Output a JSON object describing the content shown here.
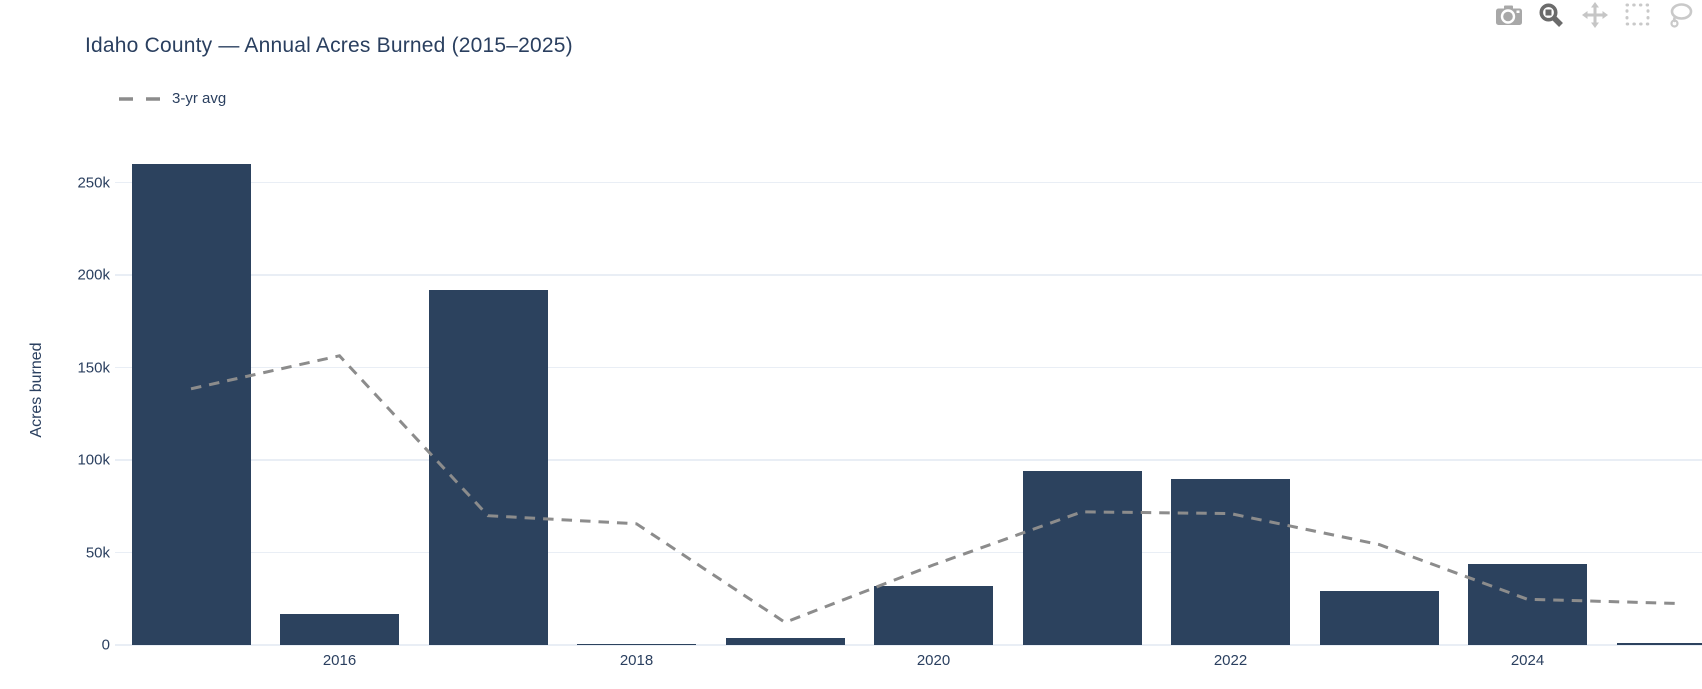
{
  "toolbar": {
    "icons": [
      {
        "name": "camera",
        "label": "Download plot as png"
      },
      {
        "name": "zoom",
        "label": "Zoom",
        "active": true
      },
      {
        "name": "pan",
        "label": "Pan"
      },
      {
        "name": "box-select",
        "label": "Box Select"
      },
      {
        "name": "lasso-select",
        "label": "Lasso Select"
      }
    ]
  },
  "chart_data": {
    "type": "bar",
    "title": "Idaho County — Annual Acres Burned (2015–2025)",
    "xlabel": "",
    "ylabel": "Acres burned",
    "categories": [
      2015,
      2016,
      2017,
      2018,
      2019,
      2020,
      2021,
      2022,
      2023,
      2024,
      2025
    ],
    "series": [
      {
        "name": "Acres burned",
        "type": "bar",
        "color": "#2c425e",
        "values": [
          260000,
          17000,
          192000,
          600,
          4000,
          32000,
          94000,
          90000,
          29000,
          44000,
          1000
        ]
      },
      {
        "name": "3-yr avg",
        "type": "line",
        "style": "dashed",
        "color": "#8c8c8c",
        "values": [
          138500,
          156300,
          69900,
          65500,
          12200,
          43300,
          72000,
          71000,
          54300,
          24700,
          22500
        ]
      }
    ],
    "ylim": [
      0,
      272000
    ],
    "yticks": [
      {
        "label": "0",
        "value": 0
      },
      {
        "label": "50k",
        "value": 50000
      },
      {
        "label": "100k",
        "value": 100000
      },
      {
        "label": "150k",
        "value": 150000
      },
      {
        "label": "200k",
        "value": 200000
      },
      {
        "label": "250k",
        "value": 250000
      }
    ],
    "xticks": [
      {
        "label": "2016",
        "value": 2016
      },
      {
        "label": "2018",
        "value": 2018
      },
      {
        "label": "2020",
        "value": 2020
      },
      {
        "label": "2022",
        "value": 2022
      },
      {
        "label": "2024",
        "value": 2024
      }
    ],
    "grid": true,
    "legend_position": "top-left",
    "legend": [
      {
        "label": "3-yr avg",
        "color": "#8c8c8c",
        "style": "dashed"
      }
    ]
  },
  "colors": {
    "bar": "#2c425e",
    "avg_line": "#8c8c8c",
    "text": "#2a3f5f",
    "grid": "#e9eef5",
    "background": "#ffffff",
    "icon_active": "#6b6b6b",
    "icon_default": "#a8a8a8",
    "icon_light": "#c9c9c9"
  }
}
